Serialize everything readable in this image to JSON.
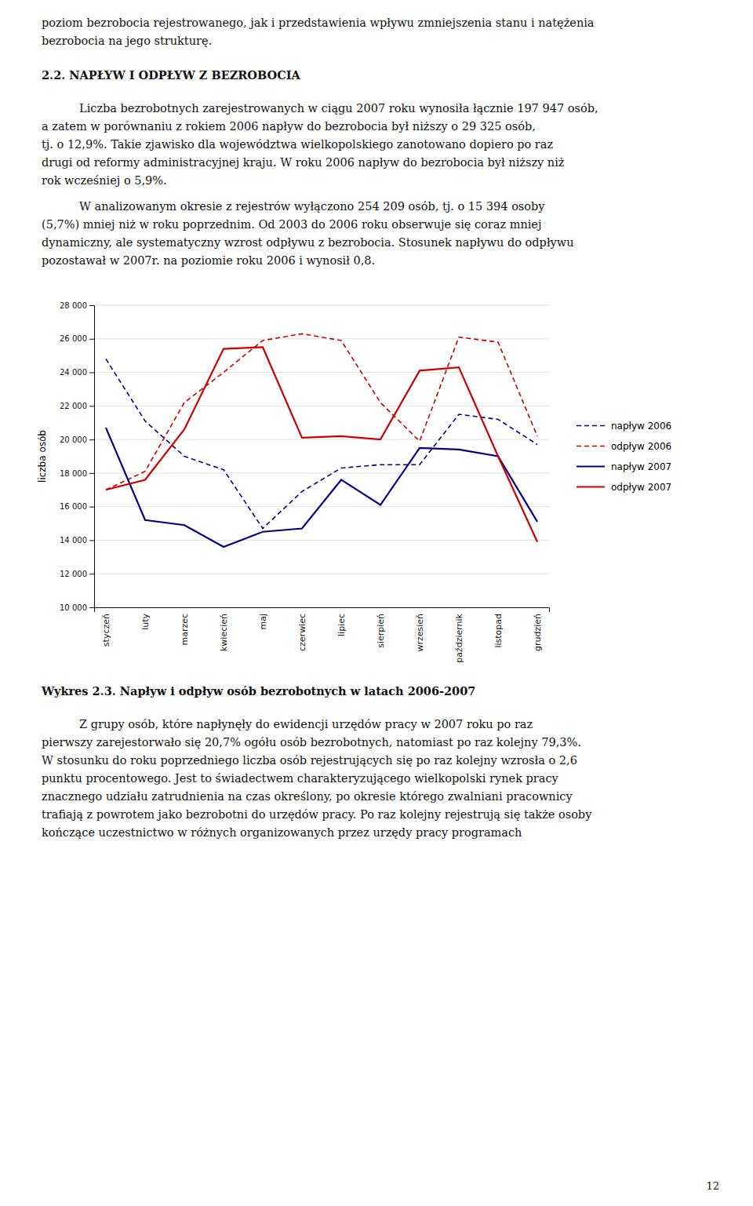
{
  "page": {
    "text_before": [
      "poziom bezrobocia rejestrowanego, jak i przedstawienia  wpływu zmniejszenia stanu i natężenia",
      "bezrobocia na jego strukturę."
    ],
    "heading": "2.2. NAPŁYW I ODPŁYW Z BEZROBOCIA",
    "paragraphs": [
      [
        "Liczba bezrobotnych zarejestrowanych w ciągu 2007 roku wynosiła łącznie 197 947 osób,",
        "a zatem w porównaniu z rokiem 2006 napływ do bezrobocia był niższy o 29 325 osób,",
        "tj. o 12,9%. Takie zjawisko dla województwa wielkopolskiego zanotowano dopiero po raz",
        "drugi od reformy administracyjnej kraju. W roku 2006 napływ do bezrobocia był niższy niż",
        "rok wcześniej o 5,9%."
      ],
      [
        "W analizowanym okresie z rejestrów wyłączono 254 209 osób, tj. o 15 394 osoby",
        "(5,7%) mniej niż w roku poprzednim. Od 2003 do 2006 roku obserwuje się coraz mniej",
        "dynamiczny, ale systematyczny wzrost odpływu z bezrobocia. Stosunek napływu do odpływu",
        "pozostawał w 2007r. na poziomie roku 2006 i wynosił 0,8."
      ]
    ],
    "text_after": [
      "Z grupy osób, które napłynęły do ewidencji urzędów pracy w 2007 roku po raz",
      "pierwszy zarejestorwało się 20,7% ogółu osób bezrobotnych, natomiast po raz kolejny 79,3%.",
      "W stosunku do roku poprzedniego liczba osób rejestrujących się po raz kolejny wzrosła o 2,6",
      "punktu procentowego. Jest to świadectwem charakteryzującego wielkopolski rynek pracy",
      "znacznego udziału zatrudnienia na czas określony, po okresie którego zwalniani pracownicy",
      "trafiają z powrotem jako bezrobotni do urzędów pracy. Po raz kolejny rejestrują się także osoby",
      "kończące uczestnictwo w różnych organizowanych przez urzędy pracy programach"
    ],
    "page_number": 12
  },
  "chart_data": {
    "type": "line",
    "title": "Wykres 2.3. Napływ i odpływ osób bezrobotnych w latach 2006-2007",
    "ylabel": "liczba osób",
    "categories": [
      "styczeń",
      "luty",
      "marzec",
      "kwiecień",
      "maj",
      "czerwiec",
      "lipiec",
      "sierpień",
      "wrzesień",
      "październik",
      "listopad",
      "grudzień"
    ],
    "series": [
      {
        "name": "napływ 2006",
        "color": "#00008B",
        "line_style": "dashed",
        "values": [
          24800,
          21100,
          19000,
          18200,
          14700,
          16900,
          18300,
          18500,
          18500,
          21500,
          21200,
          19700
        ]
      },
      {
        "name": "odpływ 2006",
        "color": "#CC0000",
        "line_style": "dashed",
        "values": [
          17000,
          18100,
          22200,
          24000,
          25900,
          26300,
          25900,
          22200,
          19900,
          26100,
          25800,
          20200
        ]
      },
      {
        "name": "napływ 2007",
        "color": "#00008B",
        "line_style": "solid",
        "values": [
          20700,
          15200,
          14900,
          13600,
          14500,
          14700,
          17600,
          16100,
          19500,
          19400,
          19000,
          15100
        ]
      },
      {
        "name": "odpływ 2007",
        "color": "#CC0000",
        "line_style": "solid",
        "values": [
          17000,
          17600,
          20600,
          25400,
          25500,
          20100,
          20200,
          20000,
          24100,
          24300,
          19000,
          13900
        ]
      }
    ],
    "ylim": [
      10000,
      28000
    ],
    "yticks": [
      {
        "value": 10000,
        "label": "10 000"
      },
      {
        "value": 12000,
        "label": "12 000"
      },
      {
        "value": 14000,
        "label": "14 000"
      },
      {
        "value": 16000,
        "label": "16 000"
      },
      {
        "value": 18000,
        "label": "18 000"
      },
      {
        "value": 20000,
        "label": "20 000"
      },
      {
        "value": 22000,
        "label": "22 000"
      },
      {
        "value": 24000,
        "label": "24 000"
      },
      {
        "value": 26000,
        "label": "26 000"
      },
      {
        "value": 28000,
        "label": "28 000"
      }
    ],
    "grid": true,
    "legend": "right"
  }
}
